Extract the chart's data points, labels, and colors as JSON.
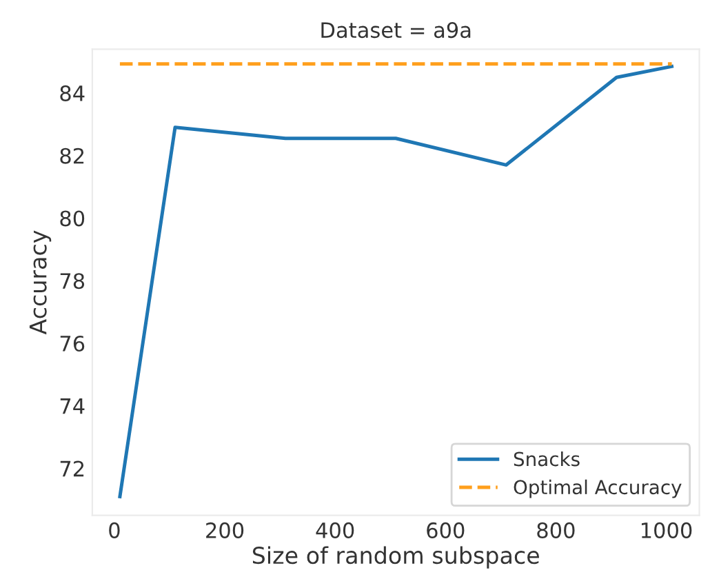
{
  "chart_data": {
    "type": "line",
    "title": "Dataset = a9a",
    "xlabel": "Size of random subspace",
    "ylabel": "Accuracy",
    "series": [
      {
        "name": "Snacks",
        "color": "#1f77b4",
        "x": [
          10,
          110,
          310,
          510,
          710,
          910,
          1010
        ],
        "values": [
          71.1,
          82.9,
          82.55,
          82.55,
          81.7,
          84.5,
          84.85
        ],
        "line_style": "solid"
      },
      {
        "name": "Optimal Accuracy",
        "color": "#ff9f1c",
        "x": [
          10,
          1010
        ],
        "values": [
          84.93,
          84.93
        ],
        "line_style": "dashed"
      }
    ],
    "xlim": [
      -40,
      1060
    ],
    "xticks": [
      0,
      200,
      400,
      600,
      800,
      1000
    ],
    "ylim": [
      70.5,
      85.4
    ],
    "yticks": [
      72,
      74,
      76,
      78,
      80,
      82,
      84
    ],
    "grid": false,
    "legend": "bottom right",
    "marker": "none"
  }
}
